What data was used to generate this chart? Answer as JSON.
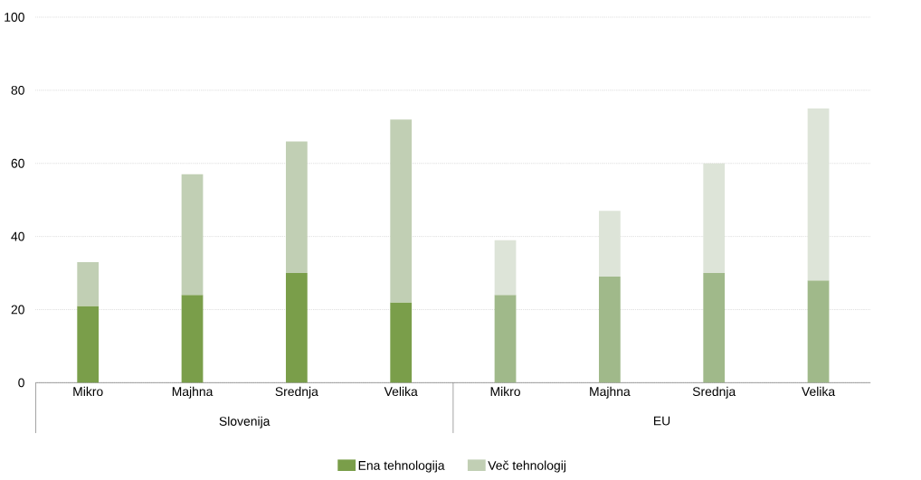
{
  "chart_data": {
    "type": "bar",
    "stacked": true,
    "categories": [
      "Mikro",
      "Majhna",
      "Srednja",
      "Velika",
      "Mikro",
      "Majhna",
      "Srednja",
      "Velika"
    ],
    "series": [
      {
        "name": "Ena tehnologija",
        "color": "#7a9e4a",
        "colors": [
          "#7a9e4a",
          "#7a9e4a",
          "#7a9e4a",
          "#7a9e4a",
          "#a0b98a",
          "#a0b98a",
          "#a0b98a",
          "#a0b98a"
        ],
        "values": [
          21,
          24,
          30,
          22,
          24,
          29,
          30,
          28
        ]
      },
      {
        "name": "Več tehnologij",
        "color": "#c1cfb4",
        "colors": [
          "#c1cfb4",
          "#c1cfb4",
          "#c1cfb4",
          "#c1cfb4",
          "#dde4d8",
          "#dde4d8",
          "#dde4d8",
          "#dde4d8"
        ],
        "values": [
          12,
          33,
          36,
          50,
          15,
          18,
          30,
          47
        ]
      }
    ],
    "ylim": [
      0,
      100
    ],
    "yticks": [
      0,
      20,
      40,
      60,
      80,
      100
    ],
    "grid": "y",
    "legend": "bottom",
    "annotations": [
      "Slovenija",
      "EU"
    ]
  }
}
